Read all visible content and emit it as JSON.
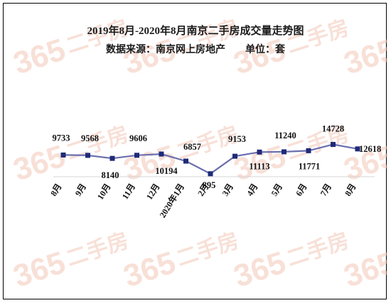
{
  "chart_data": {
    "type": "line",
    "title": "2019年8月-2020年8月南京二手房成交量走势图",
    "subtitle": "数据来源：南京网上房地产        单位：套",
    "categories": [
      "8月",
      "9月",
      "10月",
      "11月",
      "12月",
      "2020年1月",
      "2月",
      "3月",
      "4月",
      "5月",
      "6月",
      "7月",
      "8月"
    ],
    "values": [
      9733,
      9568,
      8140,
      9606,
      10194,
      6857,
      895,
      9153,
      11113,
      11240,
      11771,
      14728,
      12618
    ],
    "series_color": "#6a6fae",
    "marker_color": "#1f2a78",
    "grid": false,
    "legend": "none"
  },
  "watermark": {
    "brand_number": "365",
    "brand_name": "二手房"
  }
}
